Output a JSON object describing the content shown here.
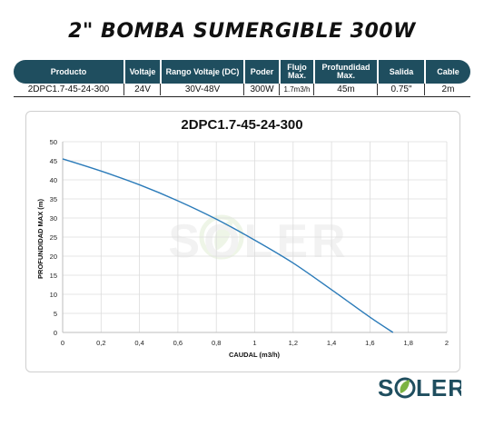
{
  "page_title": "2\" BOMBA SUMERGIBLE 300W",
  "spec_table": {
    "headers": [
      "Producto",
      "Voltaje",
      "Rango Voltaje (DC)",
      "Poder",
      "Flujo Max.",
      "Profundidad Max.",
      "Salida",
      "Cable"
    ],
    "values": [
      "2DPC1.7-45-24-300",
      "24V",
      "30V-48V",
      "300W",
      "1.7m3/h",
      "45m",
      "0.75\"",
      "2m"
    ]
  },
  "chart_data": {
    "type": "line",
    "title": "2DPC1.7-45-24-300",
    "xlabel": "CAUDAL (m3/h)",
    "ylabel": "PROFUNDIDAD MAX (m)",
    "xlim": [
      0,
      2
    ],
    "ylim": [
      0,
      50
    ],
    "xticks": [
      "0",
      "0,2",
      "0,4",
      "0,6",
      "0,8",
      "1",
      "1,2",
      "1,4",
      "1,6",
      "1,8",
      "2"
    ],
    "yticks": [
      "0",
      "5",
      "10",
      "15",
      "20",
      "25",
      "30",
      "35",
      "40",
      "45",
      "50"
    ],
    "grid": true,
    "series": [
      {
        "color": "#2b7bb9",
        "x": [
          0,
          0.2,
          0.4,
          0.6,
          0.8,
          1.0,
          1.2,
          1.4,
          1.6,
          1.72
        ],
        "y": [
          45.5,
          42.3,
          38.7,
          34.5,
          29.7,
          24.2,
          18.2,
          11.2,
          4.0,
          0
        ]
      }
    ]
  },
  "watermark": {
    "text": "SOLER"
  },
  "logo": {
    "text": "SOLER",
    "color": "#1f4e5f",
    "accent": "#7cb342"
  }
}
